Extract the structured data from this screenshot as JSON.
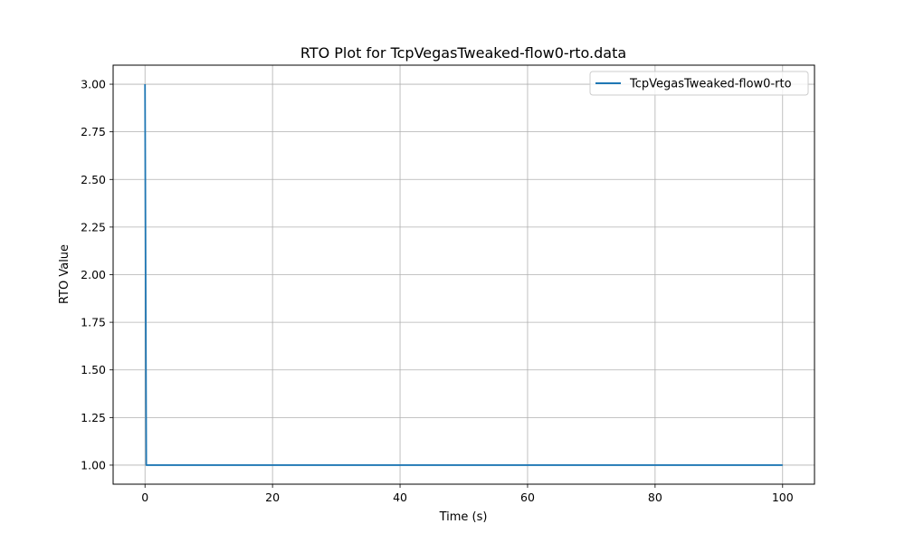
{
  "chart_data": {
    "type": "line",
    "title": "RTO Plot for TcpVegasTweaked-flow0-rto.data",
    "xlabel": "Time (s)",
    "ylabel": "RTO Value",
    "xlim": [
      -5,
      105
    ],
    "ylim": [
      0.9,
      3.1
    ],
    "x_ticks": [
      0,
      20,
      40,
      60,
      80,
      100
    ],
    "x_tick_labels": [
      "0",
      "20",
      "40",
      "60",
      "80",
      "100"
    ],
    "y_ticks": [
      1.0,
      1.25,
      1.5,
      1.75,
      2.0,
      2.25,
      2.5,
      2.75,
      3.0
    ],
    "y_tick_labels": [
      "1.00",
      "1.25",
      "1.50",
      "1.75",
      "2.00",
      "2.25",
      "2.50",
      "2.75",
      "3.00"
    ],
    "grid": true,
    "legend_position": "top-right",
    "series": [
      {
        "name": "TcpVegasTweaked-flow0-rto",
        "color": "#1f77b4",
        "x": [
          0,
          0.2,
          100
        ],
        "y": [
          3.0,
          1.0,
          1.0
        ]
      }
    ]
  }
}
